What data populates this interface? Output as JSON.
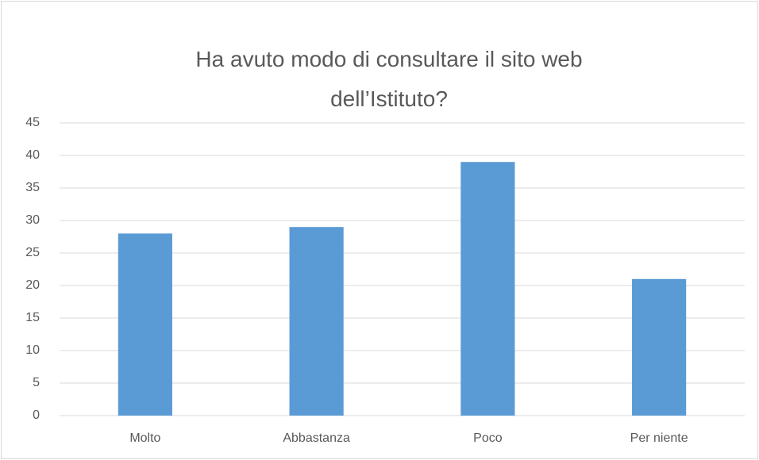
{
  "chart_data": {
    "type": "bar",
    "title": "Ha avuto modo di consultare il sito web dell’Istituto?",
    "categories": [
      "Molto",
      "Abbastanza",
      "Poco",
      "Per niente"
    ],
    "values": [
      28,
      29,
      39,
      21
    ],
    "color": "#5b9bd5",
    "ylim": [
      0,
      45
    ],
    "yticks": [
      0,
      5,
      10,
      15,
      20,
      25,
      30,
      35,
      40,
      45
    ],
    "grid": true
  }
}
